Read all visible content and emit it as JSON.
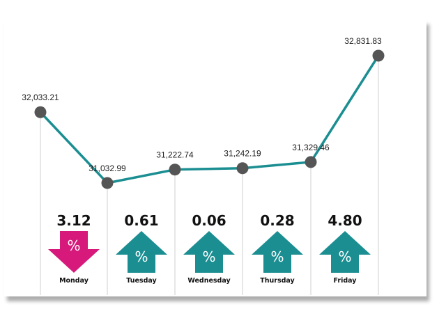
{
  "chart_data": {
    "type": "line",
    "categories": [
      "Monday",
      "Tuesday",
      "Wednesday",
      "Thursday",
      "Friday"
    ],
    "x": [
      "Monday",
      "Monday",
      "Tuesday",
      "Wednesday",
      "Thursday",
      "Friday"
    ],
    "values": [
      32033.21,
      31032.99,
      31222.74,
      31242.19,
      31329.46,
      32831.83
    ],
    "value_labels": [
      "32,033.21",
      "31,032.99",
      "31,222.74",
      "31,242.19",
      "31,329.46",
      "32,831.83"
    ],
    "daily_changes": [
      {
        "day": "Monday",
        "change_pct": "3.12",
        "direction": "down"
      },
      {
        "day": "Tuesday",
        "change_pct": "0.61",
        "direction": "up"
      },
      {
        "day": "Wednesday",
        "change_pct": "0.06",
        "direction": "up"
      },
      {
        "day": "Thursday",
        "change_pct": "0.28",
        "direction": "up"
      },
      {
        "day": "Friday",
        "change_pct": "4.80",
        "direction": "up"
      }
    ],
    "percent_symbol": "%",
    "colors": {
      "line": "#1b8e92",
      "marker": "#555555",
      "up": "#1b8e92",
      "down": "#d6197a",
      "guide": "#cfcfcf"
    },
    "grid": false
  }
}
